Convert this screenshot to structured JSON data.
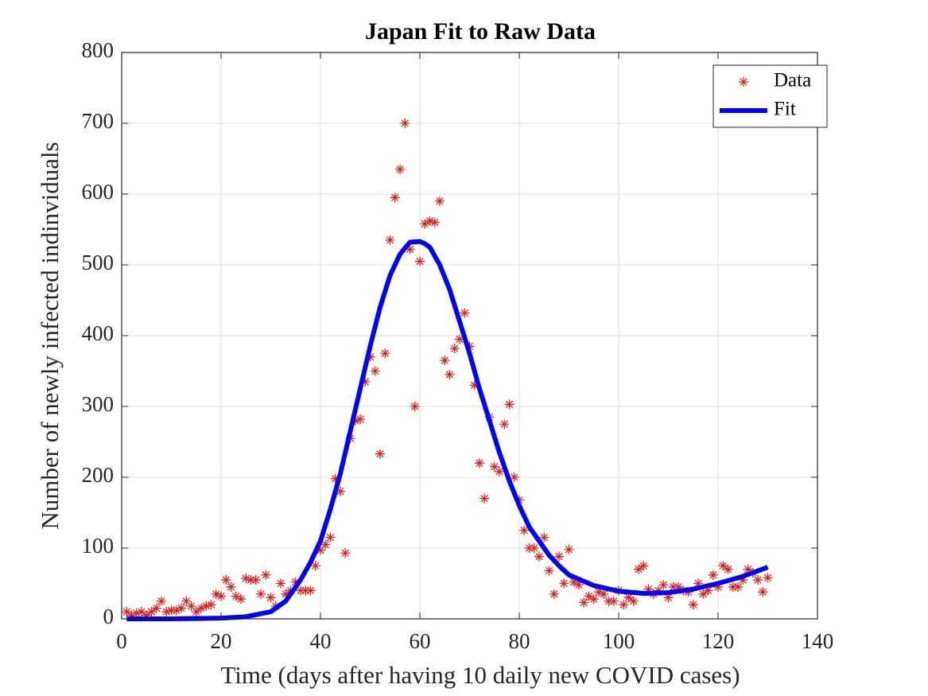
{
  "chart_data": {
    "type": "scatter",
    "title": "Japan Fit to Raw Data",
    "x_label": "Time (days after having 10 daily new COVID cases)",
    "y_label": "Number of newly infected indinviduals",
    "xlim": [
      0,
      140
    ],
    "xticks": [
      0,
      20,
      40,
      60,
      80,
      100,
      120,
      140
    ],
    "ylim": [
      0,
      800
    ],
    "yticks": [
      0,
      100,
      200,
      300,
      400,
      500,
      600,
      700,
      800
    ],
    "grid": true,
    "legend": "upper right",
    "series": [
      {
        "name": "Data",
        "color": "#e0201b",
        "style": "marker",
        "x": [
          1,
          2,
          3,
          4,
          5,
          6,
          7,
          8,
          9,
          10,
          11,
          12,
          13,
          14,
          15,
          16,
          17,
          18,
          19,
          20,
          21,
          22,
          23,
          24,
          25,
          26,
          27,
          28,
          29,
          30,
          31,
          32,
          33,
          34,
          35,
          36,
          37,
          38,
          39,
          40,
          41,
          42,
          43,
          44,
          45,
          46,
          47,
          48,
          49,
          50,
          51,
          52,
          53,
          54,
          55,
          56,
          57,
          58,
          59,
          60,
          61,
          62,
          63,
          64,
          65,
          66,
          67,
          68,
          69,
          70,
          71,
          72,
          73,
          74,
          75,
          76,
          77,
          78,
          79,
          80,
          81,
          82,
          83,
          84,
          85,
          86,
          87,
          88,
          89,
          90,
          91,
          92,
          93,
          94,
          95,
          96,
          97,
          98,
          99,
          100,
          101,
          102,
          103,
          104,
          105,
          106,
          107,
          108,
          109,
          110,
          111,
          112,
          113,
          114,
          115,
          116,
          117,
          118,
          119,
          120,
          121,
          122,
          123,
          124,
          125,
          126,
          127,
          128,
          129,
          130
        ],
        "values": [
          10,
          5,
          8,
          10,
          5,
          10,
          15,
          25,
          10,
          12,
          12,
          15,
          25,
          18,
          10,
          15,
          18,
          20,
          35,
          32,
          55,
          45,
          32,
          28,
          57,
          55,
          55,
          35,
          62,
          30,
          18,
          50,
          35,
          40,
          52,
          40,
          40,
          40,
          75,
          97,
          105,
          115,
          198,
          180,
          93,
          255,
          280,
          282,
          335,
          370,
          350,
          233,
          375,
          535,
          595,
          635,
          700,
          522,
          300,
          505,
          558,
          562,
          560,
          590,
          365,
          345,
          382,
          395,
          432,
          385,
          330,
          220,
          170,
          285,
          215,
          208,
          275,
          303,
          200,
          168,
          125,
          100,
          100,
          88,
          115,
          68,
          35,
          88,
          50,
          98,
          52,
          48,
          23,
          32,
          28,
          38,
          35,
          25,
          25,
          40,
          20,
          30,
          25,
          70,
          75,
          42,
          35,
          40,
          48,
          30,
          45,
          45,
          40,
          38,
          20,
          50,
          35,
          40,
          62,
          45,
          75,
          70,
          45,
          45,
          55,
          70,
          65,
          55,
          38,
          58
        ]
      },
      {
        "name": "Fit",
        "color": "#0000ff",
        "style": "line",
        "x": [
          1,
          10,
          20,
          25,
          30,
          33,
          36,
          38,
          40,
          42,
          44,
          46,
          48,
          50,
          52,
          54,
          56,
          58,
          60,
          61,
          62,
          64,
          66,
          68,
          70,
          72,
          74,
          76,
          78,
          80,
          82,
          84,
          86,
          88,
          90,
          95,
          100,
          105,
          110,
          115,
          120,
          125,
          130
        ],
        "values": [
          0,
          0,
          1,
          3,
          10,
          25,
          55,
          80,
          110,
          155,
          205,
          265,
          325,
          385,
          440,
          485,
          515,
          532,
          533,
          530,
          525,
          500,
          465,
          420,
          375,
          325,
          280,
          235,
          195,
          160,
          130,
          110,
          90,
          75,
          62,
          47,
          39,
          36,
          37,
          42,
          50,
          60,
          73
        ]
      }
    ]
  }
}
